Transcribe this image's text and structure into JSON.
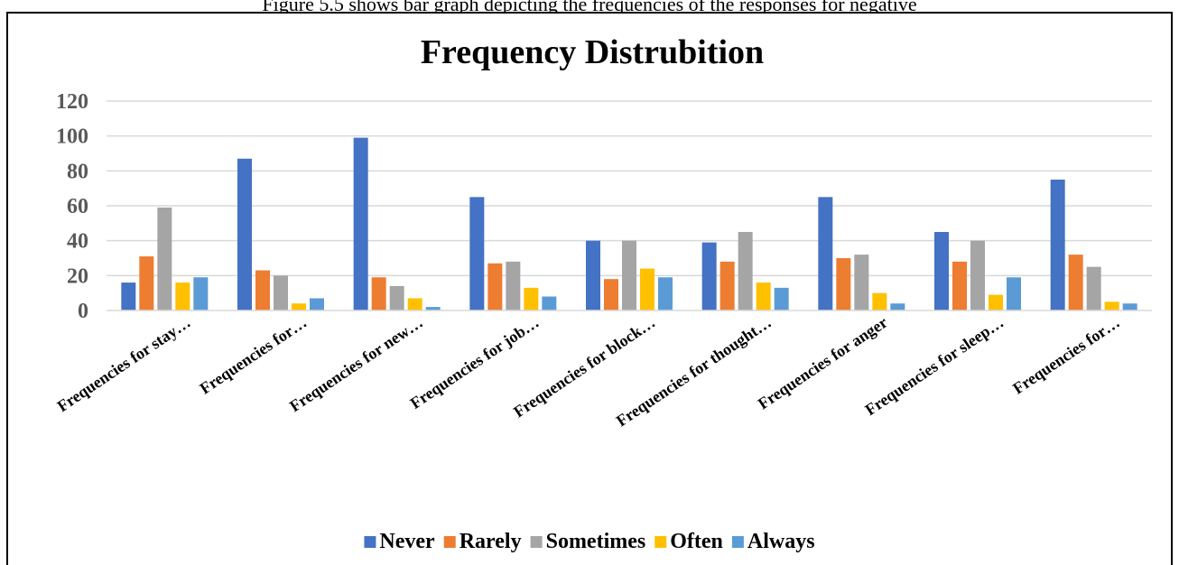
{
  "page": {
    "caption": "Figure 5.5 shows bar graph depicting the frequencies of the responses for negative"
  },
  "chart_data": {
    "type": "bar",
    "title": "Frequency Distrubition",
    "xlabel": "",
    "ylabel": "",
    "ylim": [
      0,
      120
    ],
    "yticks": [
      0,
      20,
      40,
      60,
      80,
      100,
      120
    ],
    "grid": true,
    "legend_position": "bottom",
    "categories": [
      "Frequencies for stay…",
      "Frequencies for…",
      "Frequencies for new…",
      "Frequencies for job…",
      "Frequencies for block…",
      "Frequencies for thought…",
      "Frequencies for anger",
      "Frequencies for sleep…",
      "Frequencies for…"
    ],
    "series": [
      {
        "name": "Never",
        "color": "#4472C4",
        "values": [
          16,
          87,
          99,
          65,
          40,
          39,
          65,
          45,
          75
        ]
      },
      {
        "name": "Rarely",
        "color": "#ED7D31",
        "values": [
          31,
          23,
          19,
          27,
          18,
          28,
          30,
          28,
          32
        ]
      },
      {
        "name": "Sometimes",
        "color": "#A5A5A5",
        "values": [
          59,
          20,
          14,
          28,
          40,
          45,
          32,
          40,
          25
        ]
      },
      {
        "name": "Often",
        "color": "#FFC000",
        "values": [
          16,
          4,
          7,
          13,
          24,
          16,
          10,
          9,
          5
        ]
      },
      {
        "name": "Always",
        "color": "#5B9BD5",
        "values": [
          19,
          7,
          2,
          8,
          19,
          13,
          4,
          19,
          4
        ]
      }
    ]
  }
}
